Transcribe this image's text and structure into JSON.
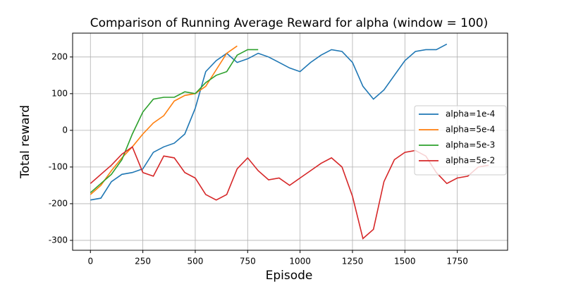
{
  "chart_data": {
    "type": "line",
    "title": "Comparison of Running Average Reward for alpha (window = 100)",
    "xlabel": "Episode",
    "ylabel": "Total reward",
    "x": [
      0,
      50,
      100,
      150,
      200,
      250,
      300,
      350,
      400,
      450,
      500,
      550,
      600,
      650,
      700,
      750,
      800,
      850,
      900,
      950,
      1000,
      1050,
      1100,
      1150,
      1200,
      1250,
      1300,
      1350,
      1400,
      1450,
      1500,
      1550,
      1600,
      1650,
      1700,
      1750,
      1800,
      1850,
      1900
    ],
    "series": [
      {
        "name": "alpha=1e-4",
        "color": "#1f77b4",
        "values": [
          -190,
          -185,
          -140,
          -120,
          -115,
          -105,
          -60,
          -45,
          -35,
          -10,
          60,
          160,
          190,
          210,
          185,
          195,
          210,
          200,
          185,
          170,
          160,
          185,
          205,
          220,
          215,
          185,
          120,
          85,
          110,
          150,
          190,
          215,
          220,
          220,
          235,
          null,
          null,
          null,
          null
        ]
      },
      {
        "name": "alpha=5e-4",
        "color": "#ff7f0e",
        "values": [
          -175,
          -150,
          -110,
          -75,
          -45,
          -10,
          20,
          40,
          80,
          95,
          100,
          120,
          165,
          210,
          230,
          null,
          null,
          null,
          null,
          null,
          null,
          null,
          null,
          null,
          null,
          null,
          null,
          null,
          null,
          null,
          null,
          null,
          null,
          null,
          null,
          null,
          null,
          null,
          null
        ]
      },
      {
        "name": "alpha=5e-3",
        "color": "#2ca02c",
        "values": [
          -170,
          -145,
          -120,
          -80,
          -10,
          50,
          85,
          90,
          90,
          105,
          100,
          130,
          150,
          160,
          205,
          220,
          220,
          null,
          null,
          null,
          null,
          null,
          null,
          null,
          null,
          null,
          null,
          null,
          null,
          null,
          null,
          null,
          null,
          null,
          null,
          null,
          null,
          null,
          null
        ]
      },
      {
        "name": "alpha=5e-2",
        "color": "#d62728",
        "values": [
          -145,
          -120,
          -95,
          -65,
          -45,
          -115,
          -125,
          -70,
          -75,
          -115,
          -130,
          -175,
          -190,
          -175,
          -105,
          -75,
          -110,
          -135,
          -130,
          -150,
          -130,
          -110,
          -90,
          -75,
          -100,
          -180,
          -295,
          -270,
          -140,
          -80,
          -60,
          -55,
          -70,
          -115,
          -145,
          -130,
          -125,
          -100,
          -95
        ]
      }
    ],
    "xlim": [
      -85,
      1990
    ],
    "xticks": [
      0,
      250,
      500,
      750,
      1000,
      1250,
      1500,
      1750
    ],
    "ylim": [
      -327,
      265
    ],
    "yticks": [
      -300,
      -200,
      -100,
      0,
      100,
      200
    ],
    "grid": true,
    "legend": "center right"
  }
}
